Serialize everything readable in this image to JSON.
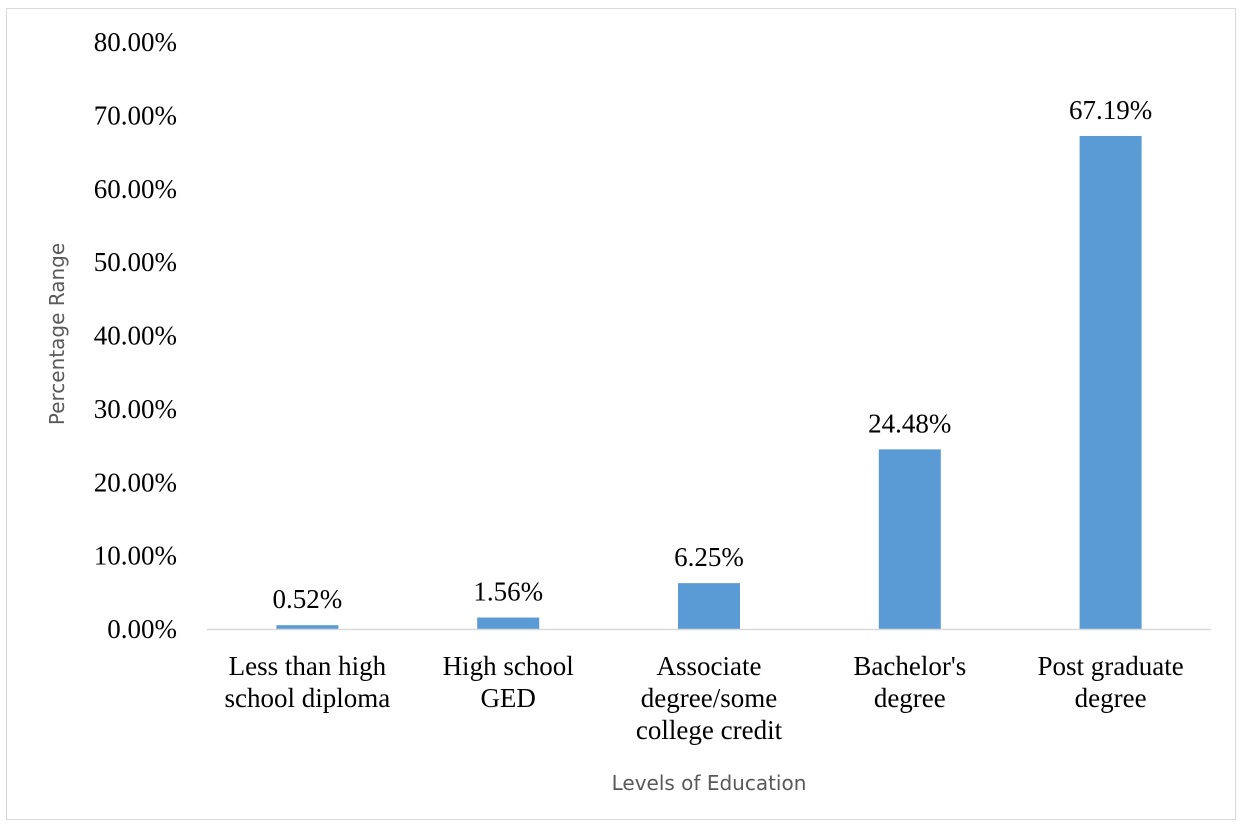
{
  "chart_data": {
    "type": "bar",
    "title": "",
    "xlabel": "Levels of Education",
    "ylabel": "Percentage Range",
    "categories": [
      [
        "Less than high",
        "school diploma"
      ],
      [
        "High school",
        "GED"
      ],
      [
        "Associate",
        "degree/some",
        "college credit"
      ],
      [
        "Bachelor's",
        "degree"
      ],
      [
        "Post graduate",
        "degree"
      ]
    ],
    "values": [
      0.52,
      1.56,
      6.25,
      24.48,
      67.19
    ],
    "data_labels": [
      "0.52%",
      "1.56%",
      "6.25%",
      "24.48%",
      "67.19%"
    ],
    "ylim": [
      0,
      80
    ],
    "yticks": [
      0,
      10,
      20,
      30,
      40,
      50,
      60,
      70,
      80
    ],
    "ytick_labels": [
      "0.00%",
      "10.00%",
      "20.00%",
      "30.00%",
      "40.00%",
      "50.00%",
      "60.00%",
      "70.00%",
      "80.00%"
    ],
    "grid": false,
    "legend": "none",
    "bar_color": "#5b9bd5",
    "axis_color": "#d9d9d9"
  }
}
